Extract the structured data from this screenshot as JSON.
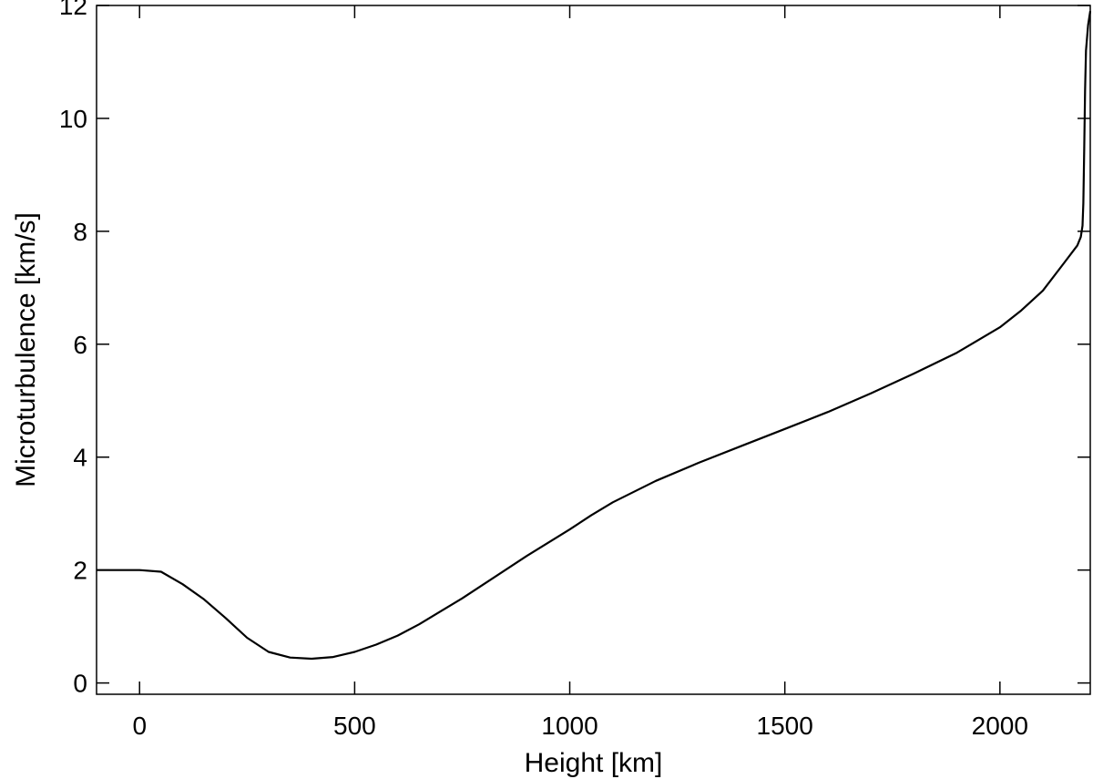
{
  "chart_data": {
    "type": "line",
    "title": "",
    "xlabel": "Height [km]",
    "ylabel": "Microturbulence [km/s]",
    "xlim": [
      -100,
      2210
    ],
    "ylim": [
      -0.2,
      12
    ],
    "xticks": [
      0,
      500,
      1000,
      1500,
      2000
    ],
    "yticks": [
      0,
      2,
      4,
      6,
      8,
      10,
      12
    ],
    "grid": false,
    "series": [
      {
        "x": [
          -100,
          0,
          50,
          100,
          150,
          200,
          250,
          300,
          350,
          400,
          450,
          500,
          550,
          600,
          650,
          700,
          750,
          800,
          900,
          1000,
          1050,
          1100,
          1200,
          1300,
          1400,
          1500,
          1600,
          1700,
          1800,
          1900,
          2000,
          2050,
          2100,
          2150,
          2180,
          2188,
          2192,
          2194,
          2196,
          2198,
          2200,
          2205,
          2210
        ],
        "y": [
          2.0,
          2.0,
          1.97,
          1.75,
          1.48,
          1.15,
          0.8,
          0.55,
          0.45,
          0.43,
          0.46,
          0.55,
          0.68,
          0.84,
          1.04,
          1.27,
          1.5,
          1.75,
          2.25,
          2.72,
          2.97,
          3.2,
          3.58,
          3.9,
          4.2,
          4.5,
          4.8,
          5.13,
          5.48,
          5.85,
          6.3,
          6.6,
          6.95,
          7.45,
          7.75,
          7.9,
          8.1,
          8.5,
          9.5,
          10.5,
          11.2,
          11.65,
          11.9
        ]
      }
    ]
  }
}
